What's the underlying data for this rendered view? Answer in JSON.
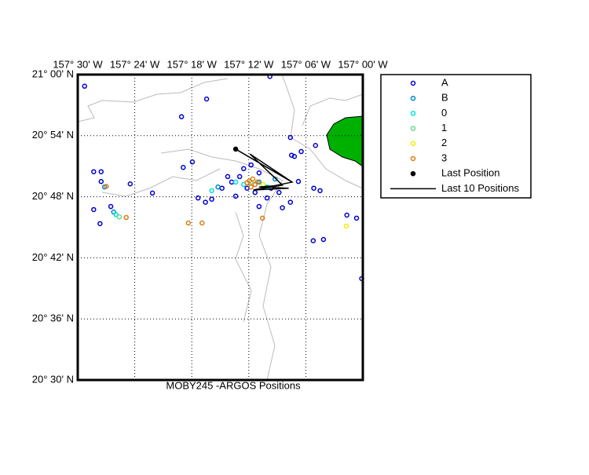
{
  "chart_data": {
    "type": "scatter",
    "xlabel": "MOBY245 -ARGOS Positions",
    "xlim": [
      -157.5,
      -157.0
    ],
    "ylim": [
      20.5,
      21.0
    ],
    "xticks": [
      {
        "value": -157.5,
        "label": "157° 30' W"
      },
      {
        "value": -157.4,
        "label": "157° 24' W"
      },
      {
        "value": -157.3,
        "label": "157° 18' W"
      },
      {
        "value": -157.2,
        "label": "157° 12' W"
      },
      {
        "value": -157.1,
        "label": "157° 06' W"
      },
      {
        "value": -157.0,
        "label": "157° 00' W"
      }
    ],
    "yticks": [
      {
        "value": 20.5,
        "label": "20° 30' N"
      },
      {
        "value": 20.6,
        "label": "20° 36' N"
      },
      {
        "value": 20.7,
        "label": "20° 42' N"
      },
      {
        "value": 20.8,
        "label": "20° 48' N"
      },
      {
        "value": 20.9,
        "label": "20° 54' N"
      },
      {
        "value": 21.0,
        "label": "21° 00' N"
      }
    ],
    "grid": true,
    "series": [
      {
        "name": "A",
        "color": "#0000cc",
        "style": "open",
        "x": [
          -157.488,
          -157.163,
          -157.274,
          -157.318,
          -157.127,
          -157.083,
          -157.108,
          -157.125,
          -157.12,
          -157.299,
          -157.315,
          -157.472,
          -157.459,
          -157.459,
          -157.408,
          -157.369,
          -157.472,
          -157.461,
          -157.442,
          -157.087,
          -157.069,
          -157.002,
          -157.011,
          -157.028,
          -157.075,
          -157.086,
          -157.113,
          -157.141,
          -157.127,
          -157.182,
          -157.168,
          -157.265,
          -157.276,
          -157.289,
          -157.23,
          -157.209,
          -157.196,
          -157.182,
          -157.161,
          -157.147,
          -157.223,
          -157.203,
          -157.189,
          -157.247,
          -157.237,
          -157.216
        ],
        "values": [
          20.981,
          20.997,
          20.96,
          20.931,
          20.897,
          20.884,
          20.874,
          20.868,
          20.866,
          20.857,
          20.848,
          20.841,
          20.841,
          20.825,
          20.821,
          20.806,
          20.779,
          20.756,
          20.784,
          20.728,
          20.73,
          20.666,
          20.765,
          20.77,
          20.81,
          20.814,
          20.825,
          20.782,
          20.791,
          20.784,
          20.798,
          20.796,
          20.791,
          20.798,
          20.824,
          20.846,
          20.852,
          20.839,
          20.814,
          20.807,
          20.801,
          20.814,
          20.807,
          20.814,
          20.833,
          20.833
        ]
      },
      {
        "name": "B",
        "color": "#0088cc",
        "style": "open",
        "x": [
          -157.453,
          -157.254,
          -157.182,
          -157.154,
          -157.437
        ],
        "values": [
          20.816,
          20.816,
          20.824,
          20.829,
          20.775
        ]
      },
      {
        "name": "0",
        "color": "#00e0e0",
        "style": "open",
        "x": [
          -157.265,
          -157.223,
          -157.209,
          -157.168,
          -157.433
        ],
        "values": [
          20.81,
          20.824,
          20.82,
          20.816,
          20.771
        ]
      },
      {
        "name": "1",
        "color": "#66dd88",
        "style": "open",
        "x": [
          -157.427,
          -157.196
        ],
        "values": [
          20.767,
          20.824
        ]
      },
      {
        "name": "2",
        "color": "#eeee00",
        "style": "open",
        "x": [
          -157.029,
          -157.175
        ],
        "values": [
          20.752,
          20.82
        ]
      },
      {
        "name": "3",
        "color": "#e07b10",
        "style": "open",
        "x": [
          -157.45,
          -157.415,
          -157.306,
          -157.282,
          -157.176,
          -157.203,
          -157.196,
          -157.189,
          -157.199,
          -157.185,
          -157.193
        ],
        "values": [
          20.817,
          20.766,
          20.757,
          20.757,
          20.765,
          20.823,
          20.816,
          20.82,
          20.826,
          20.824,
          20.829
        ]
      },
      {
        "name": "Last Position",
        "color": "#000000",
        "style": "filled",
        "x": [
          -157.223
        ],
        "values": [
          20.878
        ]
      },
      {
        "name": "Last 10 Positions",
        "color": "#000000",
        "style": "line",
        "x": [
          -157.223,
          -157.124,
          -157.192,
          -157.13,
          -157.182,
          -157.141,
          -157.198,
          -157.124,
          -157.192,
          -157.141
        ],
        "values": [
          20.878,
          20.824,
          20.811,
          20.814,
          20.816,
          20.819,
          20.87,
          20.824,
          20.811,
          20.819
        ]
      }
    ]
  }
}
